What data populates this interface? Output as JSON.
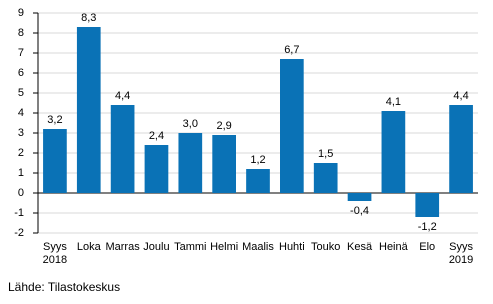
{
  "chart_data": {
    "type": "bar",
    "categories": [
      "Syys 2018",
      "Loka",
      "Marras",
      "Joulu",
      "Tammi",
      "Helmi",
      "Maalis",
      "Huhti",
      "Touko",
      "Kesä",
      "Heinä",
      "Elo",
      "Syys 2019"
    ],
    "values": [
      3.2,
      8.3,
      4.4,
      2.4,
      3.0,
      2.9,
      1.2,
      6.7,
      1.5,
      -0.4,
      4.1,
      -1.2,
      4.4
    ],
    "value_labels": [
      "3,2",
      "8,3",
      "4,4",
      "2,4",
      "3,0",
      "2,9",
      "1,2",
      "6,7",
      "1,5",
      "-0,4",
      "4,1",
      "-1,2",
      "4,4"
    ],
    "color": "#0a72b6",
    "ylim": [
      -2,
      9
    ],
    "yticks": [
      -2,
      -1,
      0,
      1,
      2,
      3,
      4,
      5,
      6,
      7,
      8,
      9
    ],
    "grid": true,
    "source": "Lähde: Tilastokeskus"
  }
}
